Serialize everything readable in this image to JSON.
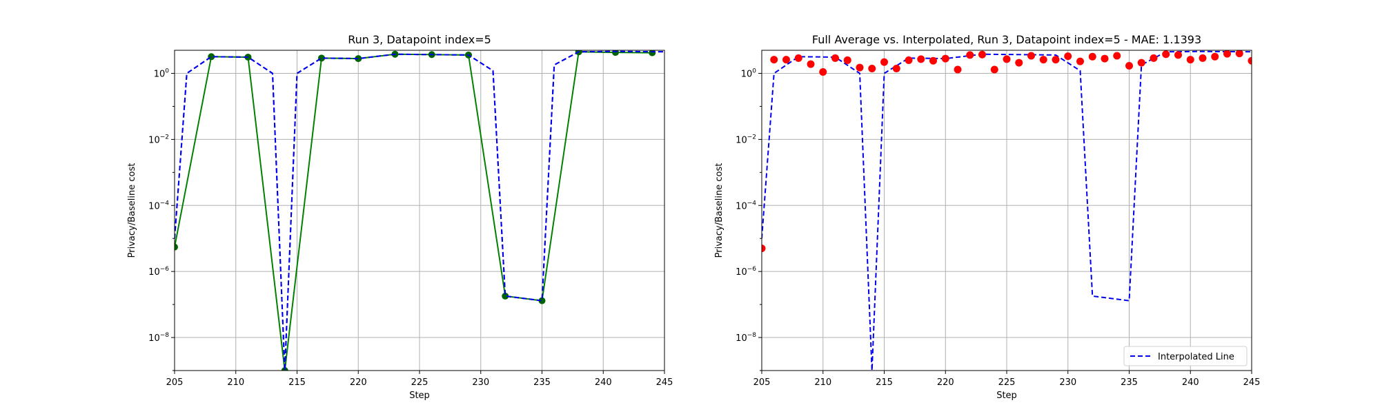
{
  "chart_data": [
    {
      "type": "line",
      "title": "Run 3, Datapoint index=5",
      "xlabel": "Step",
      "ylabel": "Privacy/Baseline cost",
      "xlim": [
        205,
        245
      ],
      "ylim": [
        1e-09,
        5
      ],
      "yscale": "log",
      "grid": true,
      "xticks": [
        205,
        210,
        215,
        220,
        225,
        230,
        235,
        240,
        245
      ],
      "yticks": [
        1e-08,
        1e-06,
        0.0001,
        0.01,
        1
      ],
      "colors": {
        "interpolated": "#0000ee",
        "sampled": "#008000",
        "marker": "#006400"
      },
      "series": [
        {
          "style": "dashed",
          "x": [
            205,
            206,
            208,
            211,
            213,
            214,
            215,
            217,
            220,
            223,
            226,
            229,
            231,
            232,
            235,
            236,
            238,
            241,
            245
          ],
          "y": [
            1e-05,
            1.0,
            3.2,
            3.1,
            1.0,
            1e-09,
            1.0,
            2.9,
            2.8,
            3.8,
            3.7,
            3.6,
            1.2,
            1.8e-07,
            1.3e-07,
            1.8,
            4.5,
            4.6,
            4.5
          ]
        },
        {
          "style": "solid-markers",
          "x": [
            205,
            208,
            211,
            214,
            217,
            220,
            223,
            226,
            229,
            232,
            235,
            238,
            241,
            244
          ],
          "y": [
            5.5e-06,
            3.2,
            3.1,
            1e-09,
            2.9,
            2.8,
            3.8,
            3.7,
            3.6,
            1.8e-07,
            1.3e-07,
            4.5,
            4.3,
            4.2
          ]
        }
      ]
    },
    {
      "type": "scatter",
      "title": "Full Average vs. Interpolated, Run 3, Datapoint index=5 - MAE: 1.1393",
      "xlabel": "Step",
      "ylabel": "Privacy/Baseline cost",
      "xlim": [
        205,
        245
      ],
      "ylim": [
        1e-09,
        5
      ],
      "yscale": "log",
      "grid": true,
      "xticks": [
        205,
        210,
        215,
        220,
        225,
        230,
        235,
        240,
        245
      ],
      "yticks": [
        1e-08,
        1e-06,
        0.0001,
        0.01,
        1
      ],
      "legend": {
        "placement": "bottom-right",
        "label": "Interpolated Line"
      },
      "colors": {
        "interpolated": "#0000ee",
        "points": "#ff0000"
      },
      "series": [
        {
          "name": "Interpolated Line",
          "style": "dashed",
          "x": [
            205,
            206,
            208,
            211,
            213,
            214,
            215,
            217,
            220,
            223,
            226,
            229,
            231,
            232,
            235,
            236,
            238,
            241,
            245
          ],
          "y": [
            1e-05,
            1.0,
            3.2,
            3.1,
            1.0,
            1e-09,
            1.0,
            2.9,
            2.8,
            3.8,
            3.7,
            3.6,
            1.2,
            1.8e-07,
            1.3e-07,
            1.8,
            4.5,
            4.6,
            4.5
          ]
        },
        {
          "style": "points",
          "x": [
            205,
            206,
            207,
            208,
            209,
            210,
            211,
            212,
            213,
            214,
            215,
            216,
            217,
            218,
            219,
            220,
            221,
            222,
            223,
            224,
            225,
            226,
            227,
            228,
            229,
            230,
            231,
            232,
            233,
            234,
            235,
            236,
            237,
            238,
            239,
            240,
            241,
            242,
            243,
            244,
            245
          ],
          "y": [
            5e-06,
            2.6,
            2.6,
            2.9,
            1.9,
            1.1,
            2.9,
            2.5,
            1.5,
            1.4,
            2.2,
            1.4,
            2.5,
            2.7,
            2.4,
            2.8,
            1.3,
            3.6,
            3.7,
            1.3,
            2.7,
            2.1,
            3.4,
            2.6,
            2.6,
            3.3,
            2.3,
            3.2,
            2.8,
            3.4,
            1.7,
            2.1,
            2.9,
            3.8,
            3.6,
            2.6,
            2.9,
            3.2,
            3.9,
            4.0,
            2.4
          ]
        }
      ]
    }
  ]
}
